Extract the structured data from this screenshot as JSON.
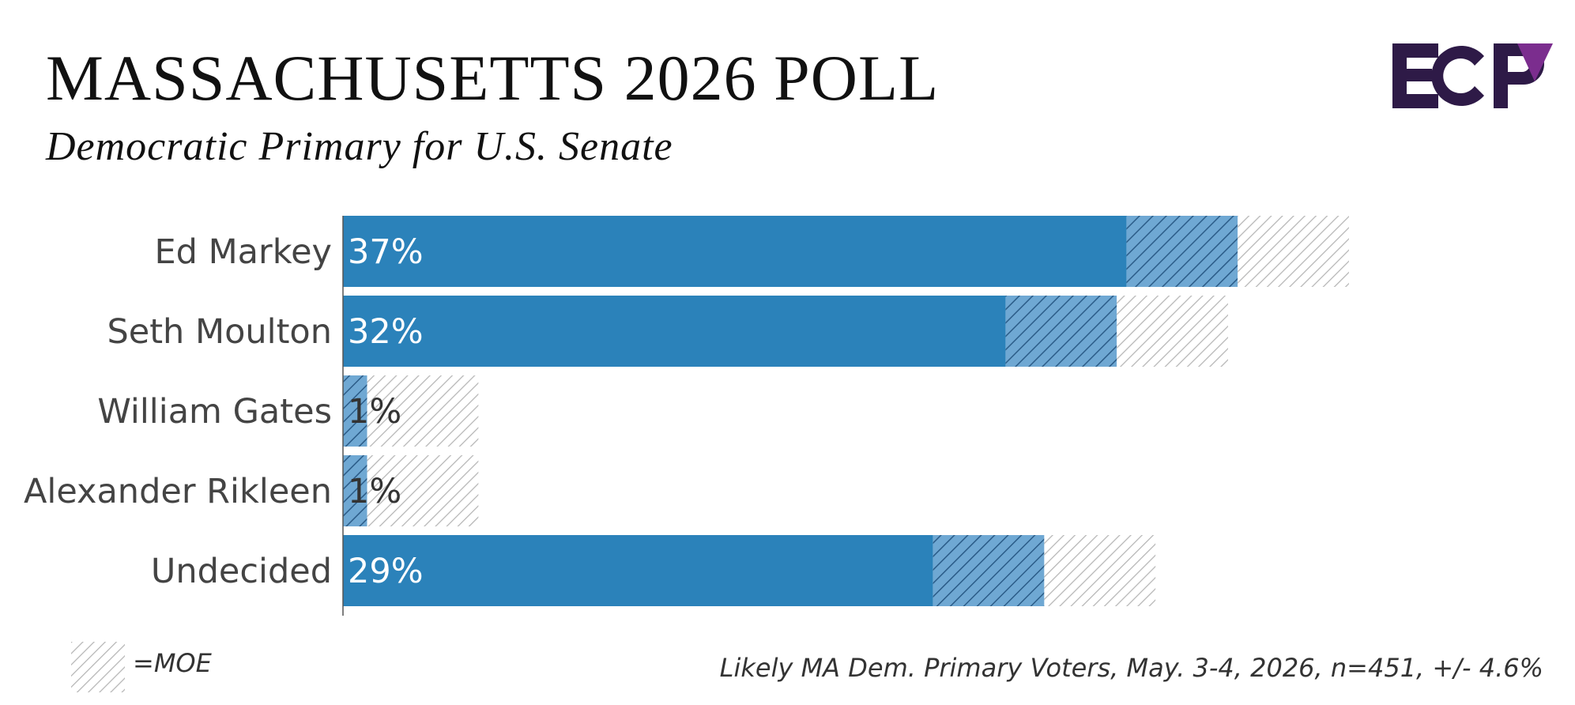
{
  "header": {
    "title": "MASSACHUSETTS 2026 POLL",
    "subtitle": "Democratic Primary for U.S. Senate"
  },
  "logo": {
    "text": "ECP",
    "primary_color": "#2e1a47",
    "accent_color": "#7b2d8e"
  },
  "legend": {
    "label": "=MOE"
  },
  "footer": {
    "source": "Likely MA Dem. Primary Voters, May. 3-4, 2026, n=451, +/- 4.6%"
  },
  "colors": {
    "bar": "#2b82ba",
    "moe_inner_fill": "#6fa8d3",
    "moe_hatch_dark": "#2b5c88",
    "moe_outer_hatch": "#b5b5b5",
    "axis": "#555555",
    "label_on_bar": "#ffffff",
    "label_off_bar": "#333333"
  },
  "chart_data": {
    "type": "bar",
    "orientation": "horizontal",
    "title": "MASSACHUSETTS 2026 POLL",
    "subtitle": "Democratic Primary for U.S. Senate",
    "categories": [
      "Ed Markey",
      "Seth Moulton",
      "William Gates",
      "Alexander Rikleen",
      "Undecided"
    ],
    "values": [
      37,
      32,
      1,
      1,
      29
    ],
    "value_labels": [
      "37%",
      "32%",
      "1%",
      "1%",
      "29%"
    ],
    "margin_of_error": 4.6,
    "xlim": [
      0,
      50
    ],
    "legend": "bottom-left",
    "grid": false
  }
}
